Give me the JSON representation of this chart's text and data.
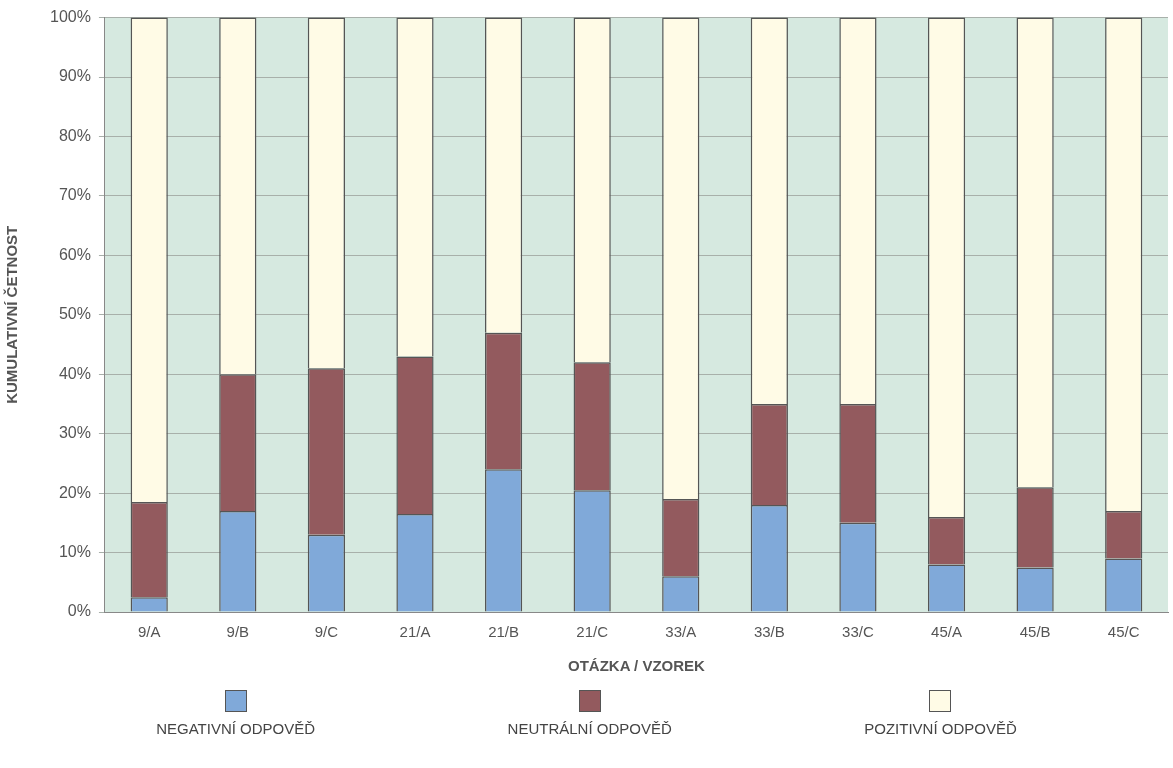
{
  "chart_data": {
    "type": "bar",
    "stacked": true,
    "xlabel": "OTÁZKA / VZOREK",
    "ylabel": "KUMULATIVNÍ ČETNOST",
    "categories": [
      "9/A",
      "9/B",
      "9/C",
      "21/A",
      "21/B",
      "21/C",
      "33/A",
      "33/B",
      "33/C",
      "45/A",
      "45/B",
      "45/C"
    ],
    "series": [
      {
        "name": "NEGATIVNÍ ODPOVĚĎ",
        "color": "#80a9d9",
        "values": [
          2.5,
          17,
          13,
          16.5,
          24,
          20.5,
          6,
          18,
          15,
          8,
          7.5,
          9
        ]
      },
      {
        "name": "NEUTRÁLNÍ ODPOVĚĎ",
        "color": "#935a5e",
        "values": [
          16,
          23,
          28,
          26.5,
          23,
          21.5,
          13,
          17,
          20,
          8,
          13.5,
          8
        ]
      },
      {
        "name": "POZITIVNÍ ODPOVĚĎ",
        "color": "#fffbe6",
        "values": [
          81.5,
          60,
          59,
          57,
          53,
          58,
          81,
          65,
          65,
          84,
          79,
          83
        ]
      }
    ],
    "ylim": [
      0,
      100
    ],
    "yticks": [
      {
        "value": 0,
        "label": "0%"
      },
      {
        "value": 10,
        "label": "10%"
      },
      {
        "value": 20,
        "label": "20%"
      },
      {
        "value": 30,
        "label": "30%"
      },
      {
        "value": 40,
        "label": "40%"
      },
      {
        "value": 50,
        "label": "50%"
      },
      {
        "value": 60,
        "label": "60%"
      },
      {
        "value": 70,
        "label": "70%"
      },
      {
        "value": 80,
        "label": "80%"
      },
      {
        "value": 90,
        "label": "90%"
      },
      {
        "value": 100,
        "label": "100%"
      }
    ],
    "grid": "y",
    "legend": "bottom"
  }
}
